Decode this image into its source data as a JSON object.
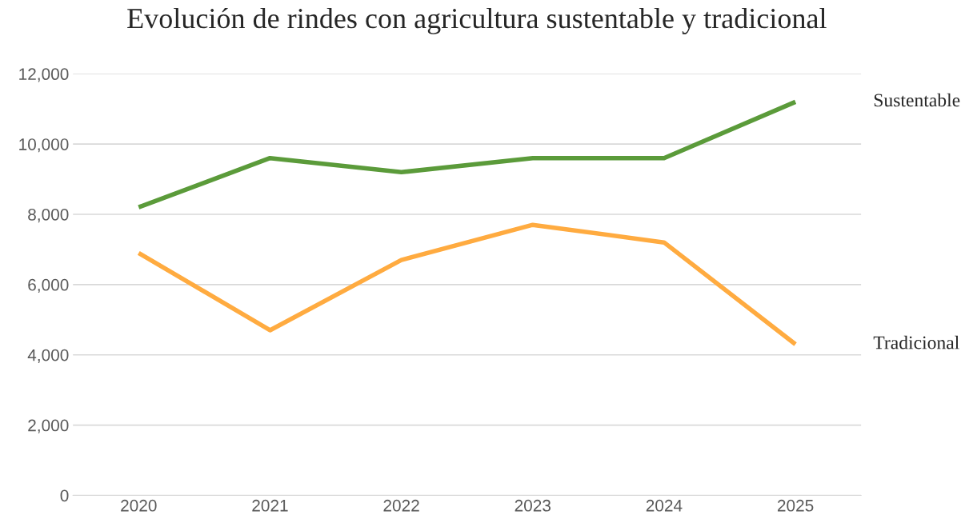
{
  "chart_data": {
    "type": "line",
    "title": "Evolución de rindes con agricultura sustentable y tradicional",
    "categories": [
      "2020",
      "2021",
      "2022",
      "2023",
      "2024",
      "2025"
    ],
    "series": [
      {
        "name": "Sustentable",
        "color": "#5b9b3a",
        "values": [
          8200,
          9600,
          9200,
          9600,
          9600,
          11200
        ]
      },
      {
        "name": "Tradicional",
        "color": "#ffab40",
        "values": [
          6900,
          4700,
          6700,
          7700,
          7200,
          4300
        ]
      }
    ],
    "ylim": [
      0,
      12000
    ],
    "yticks": [
      {
        "value": 0,
        "label": "0"
      },
      {
        "value": 2000,
        "label": "2,000"
      },
      {
        "value": 4000,
        "label": "4,000"
      },
      {
        "value": 6000,
        "label": "6,000"
      },
      {
        "value": 8000,
        "label": "8,000"
      },
      {
        "value": 10000,
        "label": "10,000"
      },
      {
        "value": 12000,
        "label": "12,000"
      }
    ],
    "grid": "y",
    "legend": false,
    "marker": "none",
    "line_style": "solid"
  }
}
